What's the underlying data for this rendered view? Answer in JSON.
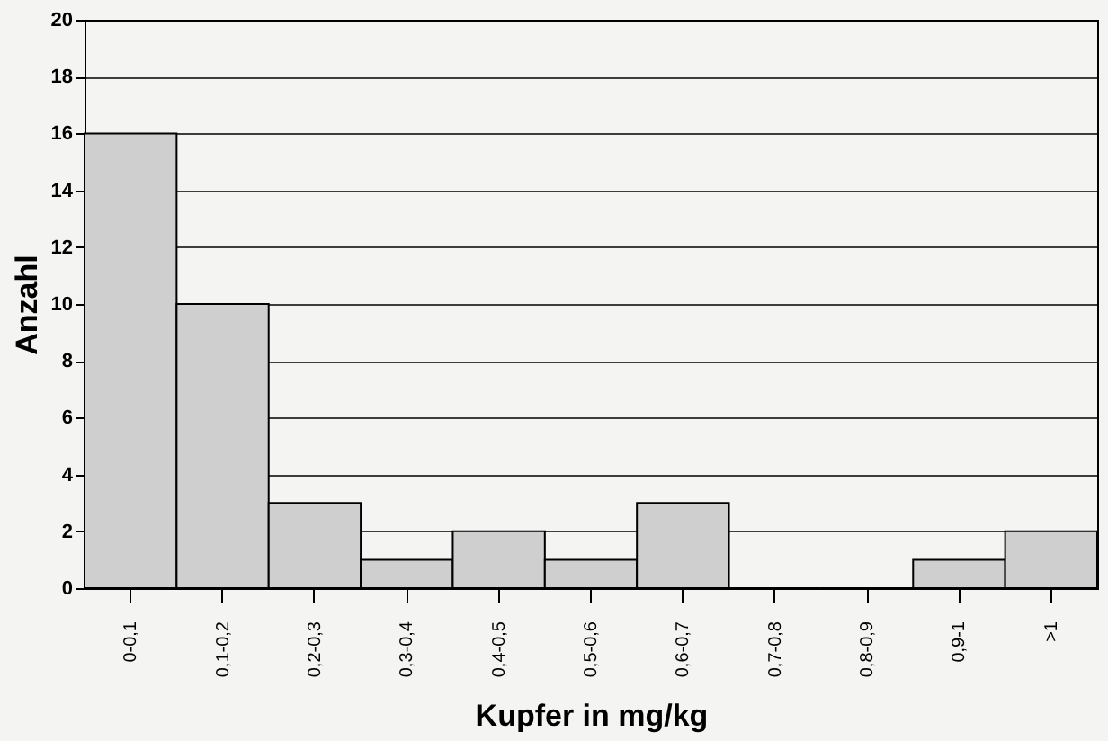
{
  "chart_data": {
    "type": "bar",
    "xlabel": "Kupfer in mg/kg",
    "ylabel": "Anzahl",
    "categories": [
      "0-0,1",
      "0,1-0,2",
      "0,2-0,3",
      "0,3-0,4",
      "0,4-0,5",
      "0,5-0,6",
      "0,6-0,7",
      "0,7-0,8",
      "0,8-0,9",
      "0,9-1",
      ">1"
    ],
    "values": [
      16,
      10,
      3,
      1,
      2,
      1,
      3,
      0,
      0,
      1,
      2
    ],
    "color": "#cfcfcf",
    "ylim": [
      0,
      20
    ],
    "yticks": [
      0,
      2,
      4,
      6,
      8,
      10,
      12,
      14,
      16,
      18,
      20
    ],
    "grid": "y"
  }
}
